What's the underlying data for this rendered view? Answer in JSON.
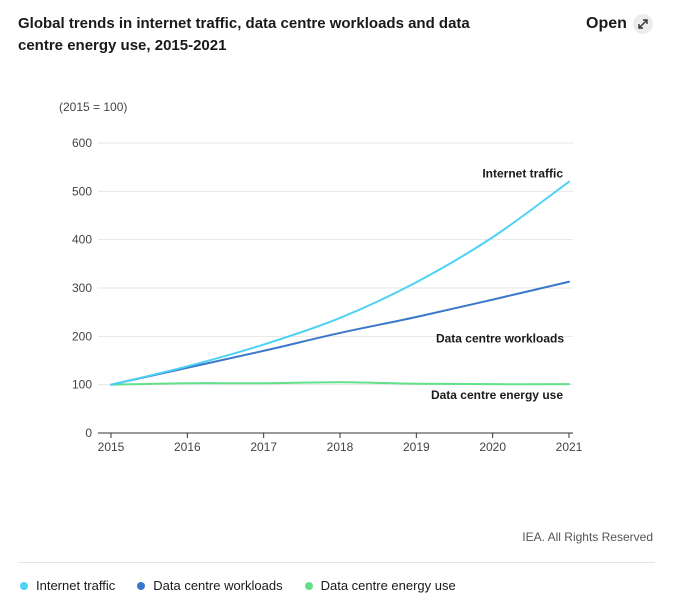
{
  "header": {
    "title": "Global trends in internet traffic, data centre workloads and data centre energy use, 2015-2021",
    "open_label": "Open",
    "open_icon": "expand-arrows-icon"
  },
  "credit": "IEA. All Rights Reserved",
  "colors": {
    "internet": "#4dd2f5",
    "workloads": "#3a78c9",
    "energy": "#62e08a",
    "grid": "#e6e6e6",
    "axis": "#333333"
  },
  "chart_data": {
    "type": "line",
    "title": "Global trends in internet traffic, data centre workloads and data centre energy use, 2015-2021",
    "ylabel": "(2015 = 100)",
    "xlabel": "",
    "x": [
      "2015",
      "2016",
      "2017",
      "2018",
      "2019",
      "2020",
      "2021"
    ],
    "ylim": [
      0,
      600
    ],
    "yticks": [
      "0",
      "100",
      "200",
      "300",
      "400",
      "500",
      "600"
    ],
    "grid": true,
    "series": [
      {
        "name": "Internet traffic",
        "key": "internet",
        "values": [
          100,
          138,
          183,
          238,
          312,
          405,
          520
        ]
      },
      {
        "name": "Data centre workloads",
        "key": "workloads",
        "values": [
          100,
          135,
          170,
          207,
          240,
          276,
          313
        ]
      },
      {
        "name": "Data centre energy use",
        "key": "energy",
        "values": [
          100,
          103,
          103,
          105,
          102,
          101,
          101
        ]
      }
    ]
  }
}
